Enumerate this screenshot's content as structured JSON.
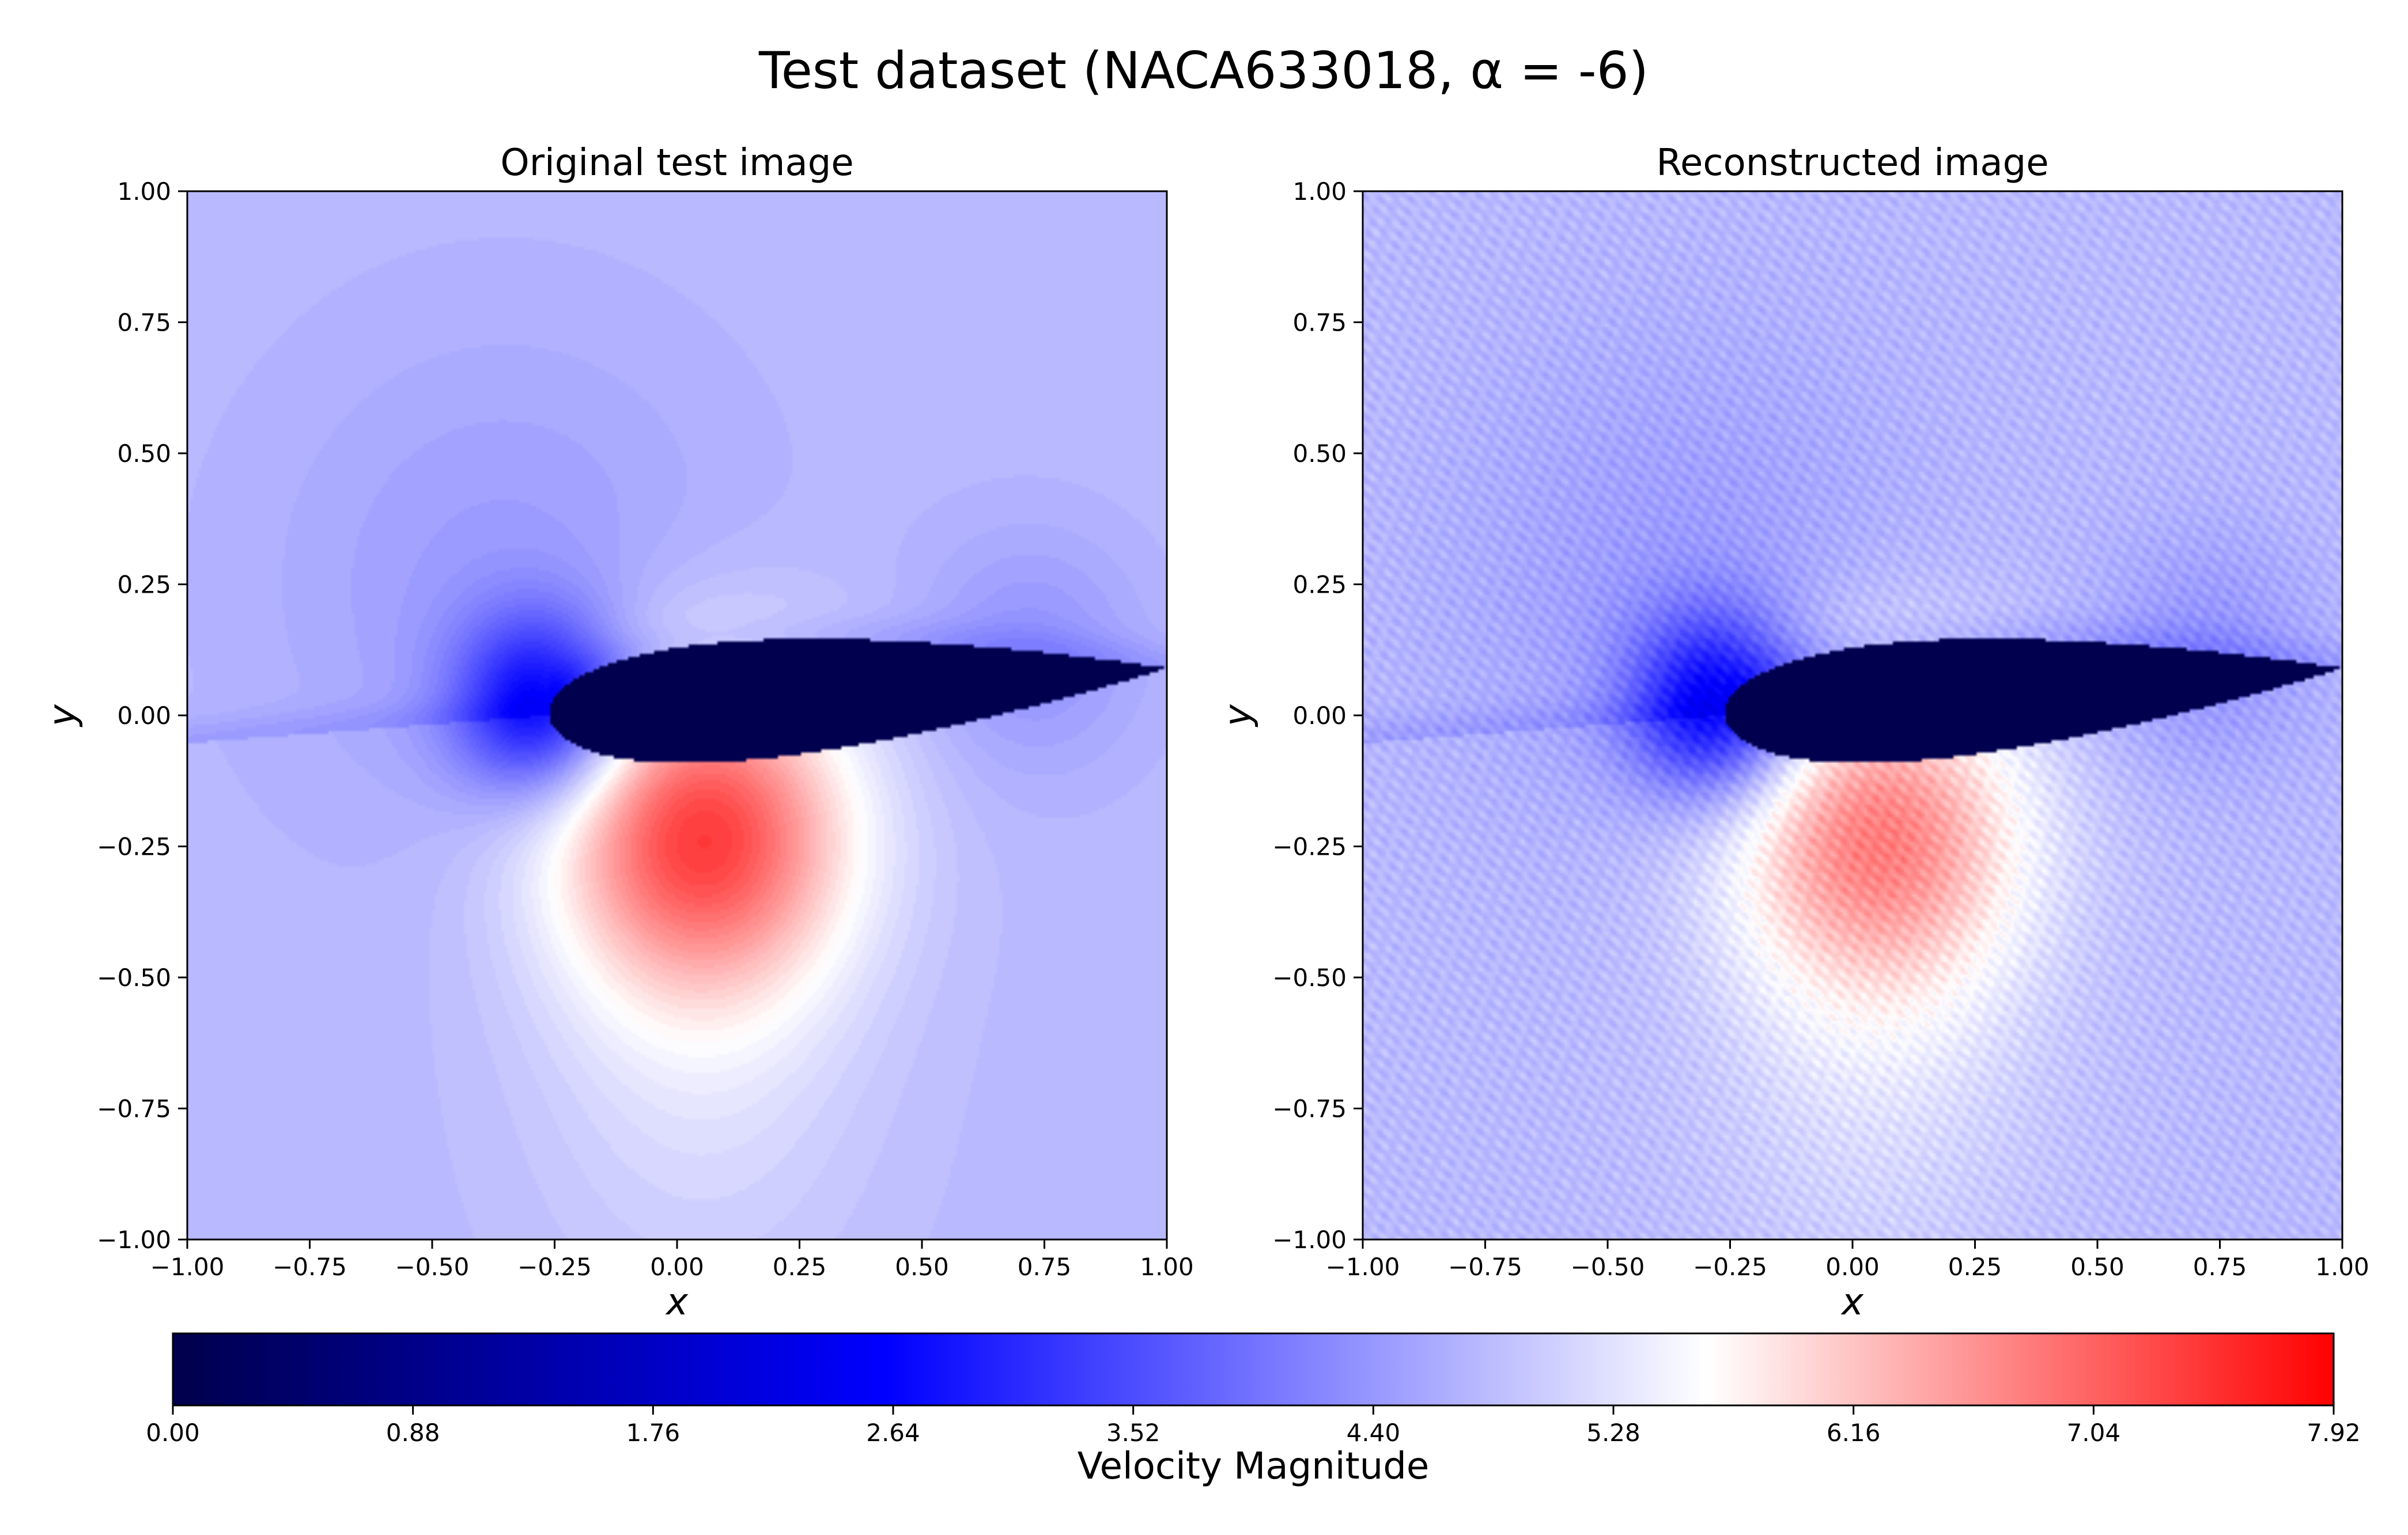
{
  "figure": {
    "title": "Test dataset (NACA633018, α = -6)"
  },
  "chart_data": [
    {
      "type": "heatmap",
      "title": "Original test image",
      "xlabel": "x",
      "ylabel": "y",
      "xlim": [
        -1.0,
        1.0
      ],
      "ylim": [
        -1.0,
        1.0
      ],
      "xticks": [
        "−1.00",
        "−0.75",
        "−0.50",
        "−0.25",
        "0.00",
        "0.25",
        "0.50",
        "0.75",
        "1.00"
      ],
      "yticks": [
        "−1.00",
        "−0.75",
        "−0.50",
        "−0.25",
        "0.00",
        "0.25",
        "0.50",
        "0.75",
        "1.00"
      ],
      "field": {
        "freestream": 4.8,
        "airfoil": "NACA633018",
        "alpha_deg": -6,
        "leading_edge": [
          -0.26,
          0.0
        ],
        "trailing_edge": [
          1.0,
          0.09
        ],
        "stagnation_minimum": 2.6,
        "lower_surface_peak": 7.2,
        "interior_value": 0.0
      }
    },
    {
      "type": "heatmap",
      "title": "Reconstructed image",
      "xlabel": "x",
      "ylabel": "y",
      "xlim": [
        -1.0,
        1.0
      ],
      "ylim": [
        -1.0,
        1.0
      ],
      "xticks": [
        "−1.00",
        "−0.75",
        "−0.50",
        "−0.25",
        "0.00",
        "0.25",
        "0.50",
        "0.75",
        "1.00"
      ],
      "yticks": [
        "−1.00",
        "−0.75",
        "−0.50",
        "−0.25",
        "0.00",
        "0.25",
        "0.50",
        "0.75",
        "1.00"
      ],
      "field": {
        "freestream": 4.8,
        "airfoil": "NACA633018",
        "alpha_deg": -6,
        "leading_edge": [
          -0.26,
          0.0
        ],
        "trailing_edge": [
          1.0,
          0.09
        ],
        "stagnation_minimum": 2.6,
        "lower_surface_peak": 6.6,
        "interior_value": 0.0
      }
    }
  ],
  "colorbar": {
    "label": "Velocity Magnitude",
    "min": 0.0,
    "max": 7.92,
    "ticks": [
      "0.00",
      "0.88",
      "1.76",
      "2.64",
      "3.52",
      "4.40",
      "5.28",
      "6.16",
      "7.04",
      "7.92"
    ],
    "colors": [
      "#00004c",
      "#0000ff",
      "#ffffff",
      "#ff0000"
    ],
    "color_stops": [
      0.0,
      0.33,
      0.71,
      1.0
    ],
    "levels": 90
  }
}
